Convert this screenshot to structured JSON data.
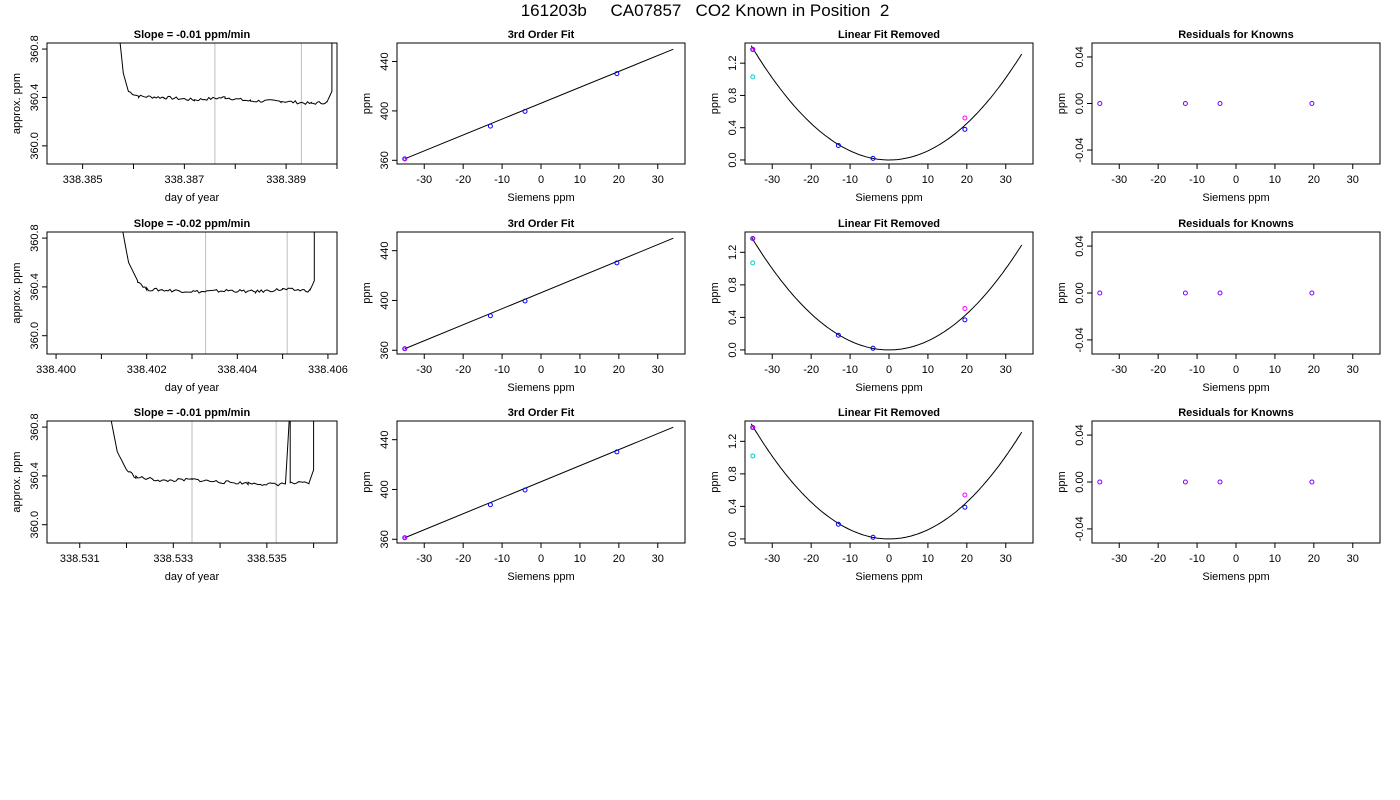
{
  "page": {
    "title": "161203b     CA07857   CO2 Known in Position  2"
  },
  "labels": {
    "time_xlabel": "day of year",
    "time_ylabel": "approx. ppm",
    "fit_title": "3rd Order Fit",
    "fit_ylabel": "ppm",
    "linrem_title": "Linear Fit Removed",
    "linrem_ylabel": "ppm",
    "resid_title": "Residuals for Knowns",
    "resid_ylabel": "ppm",
    "siemens_xlabel": "Siemens ppm"
  },
  "colors": {
    "line": "#000000",
    "blue": "#0000ff",
    "magenta": "#ff00ff",
    "cyan": "#00cccc",
    "purple": "#8000ff",
    "gray": "#bebebe"
  },
  "chart_data": [
    {
      "row": 1,
      "type": "line",
      "title": "Slope =  -0.01  ppm/min",
      "xlabel": "day of year",
      "ylabel": "approx. ppm",
      "xlim": [
        338.3843,
        338.39
      ],
      "ylim": [
        359.85,
        360.85
      ],
      "xticks": [
        338.385,
        338.387,
        338.389
      ],
      "xticklabels": [
        "338.385",
        "338.387",
        "338.389"
      ],
      "xminor": [
        338.386,
        338.388,
        338.39
      ],
      "yticks": [
        360.0,
        360.4,
        360.8
      ],
      "yticklabels": [
        "360.0",
        "360.4",
        "360.8"
      ],
      "vlines": [
        338.3876,
        338.3893
      ],
      "trace": [
        [
          338.3857,
          361.0
        ],
        [
          338.3858,
          360.6
        ],
        [
          338.3859,
          360.45
        ],
        [
          338.3861,
          360.41
        ],
        [
          338.3866,
          360.4
        ],
        [
          338.3872,
          360.38
        ],
        [
          338.3878,
          360.4
        ],
        [
          338.3883,
          360.37
        ],
        [
          338.3889,
          360.37
        ],
        [
          338.3895,
          360.35
        ],
        [
          338.3898,
          360.36
        ],
        [
          338.3899,
          360.45
        ],
        [
          338.3899,
          361.0
        ]
      ]
    },
    {
      "row": 2,
      "type": "line",
      "title": "Slope =  -0.02  ppm/min",
      "xlabel": "day of year",
      "ylabel": "approx. ppm",
      "xlim": [
        338.3998,
        338.4062
      ],
      "ylim": [
        359.85,
        360.85
      ],
      "xticks": [
        338.4,
        338.402,
        338.404,
        338.406
      ],
      "xticklabels": [
        "338.400",
        "338.402",
        "338.404",
        "338.406"
      ],
      "xminor": [
        338.401,
        338.403,
        338.405
      ],
      "yticks": [
        360.0,
        360.4,
        360.8
      ],
      "yticklabels": [
        "360.0",
        "360.4",
        "360.8"
      ],
      "vlines": [
        338.4033,
        338.4051
      ],
      "trace": [
        [
          338.4014,
          361.0
        ],
        [
          338.4016,
          360.6
        ],
        [
          338.4018,
          360.45
        ],
        [
          338.402,
          360.38
        ],
        [
          338.4026,
          360.37
        ],
        [
          338.4032,
          360.36
        ],
        [
          338.4038,
          360.37
        ],
        [
          338.4044,
          360.36
        ],
        [
          338.405,
          360.38
        ],
        [
          338.4056,
          360.37
        ],
        [
          338.4057,
          360.45
        ],
        [
          338.4057,
          361.0
        ]
      ]
    },
    {
      "row": 3,
      "type": "line",
      "title": "Slope =  -0.01  ppm/min",
      "xlabel": "day of year",
      "ylabel": "approx. ppm",
      "xlim": [
        338.5303,
        338.5365
      ],
      "ylim": [
        359.85,
        360.85
      ],
      "xticks": [
        338.531,
        338.533,
        338.535
      ],
      "xticklabels": [
        "338.531",
        "338.533",
        "338.535"
      ],
      "xminor": [
        338.532,
        338.534,
        338.536
      ],
      "yticks": [
        360.0,
        360.4,
        360.8
      ],
      "yticklabels": [
        "360.0",
        "360.4",
        "360.8"
      ],
      "vlines": [
        338.5334,
        338.5352
      ],
      "trace": [
        [
          338.5316,
          361.0
        ],
        [
          338.5318,
          360.6
        ],
        [
          338.532,
          360.45
        ],
        [
          338.5322,
          360.39
        ],
        [
          338.5328,
          360.36
        ],
        [
          338.5334,
          360.37
        ],
        [
          338.534,
          360.35
        ],
        [
          338.5346,
          360.34
        ],
        [
          338.5352,
          360.33
        ],
        [
          338.5354,
          360.34
        ],
        [
          338.5355,
          361.0
        ],
        [
          338.5355,
          360.34
        ],
        [
          338.5359,
          360.34
        ],
        [
          338.536,
          360.45
        ],
        [
          338.536,
          361.0
        ]
      ]
    },
    {
      "row": 1,
      "type": "scatter",
      "title": "3rd Order Fit",
      "xlabel": "Siemens ppm",
      "ylabel": "ppm",
      "xlim": [
        -37,
        37
      ],
      "ylim": [
        357,
        455
      ],
      "xticks": [
        -30,
        -20,
        -10,
        0,
        10,
        20,
        30
      ],
      "yticks": [
        360,
        400,
        440
      ],
      "x": [
        -35.0,
        -13.0,
        -4.1,
        19.5
      ],
      "y": [
        361.2,
        387.7,
        399.6,
        430.2
      ],
      "line": [
        [
          -35,
          361.2
        ],
        [
          34,
          450.0
        ]
      ]
    },
    {
      "row": 2,
      "type": "scatter",
      "title": "3rd Order Fit",
      "xlabel": "Siemens ppm",
      "ylabel": "ppm",
      "xlim": [
        -37,
        37
      ],
      "ylim": [
        357,
        455
      ],
      "xticks": [
        -30,
        -20,
        -10,
        0,
        10,
        20,
        30
      ],
      "yticks": [
        360,
        400,
        440
      ],
      "x": [
        -35.0,
        -13.0,
        -4.1,
        19.5
      ],
      "y": [
        361.2,
        387.7,
        399.6,
        430.2
      ],
      "line": [
        [
          -35,
          361.2
        ],
        [
          34,
          450.0
        ]
      ]
    },
    {
      "row": 3,
      "type": "scatter",
      "title": "3rd Order Fit",
      "xlabel": "Siemens ppm",
      "ylabel": "ppm",
      "xlim": [
        -37,
        37
      ],
      "ylim": [
        357,
        455
      ],
      "xticks": [
        -30,
        -20,
        -10,
        0,
        10,
        20,
        30
      ],
      "yticks": [
        360,
        400,
        440
      ],
      "x": [
        -35.0,
        -13.0,
        -4.1,
        19.5
      ],
      "y": [
        361.2,
        387.7,
        399.6,
        430.2
      ],
      "line": [
        [
          -35,
          361.2
        ],
        [
          34,
          450.0
        ]
      ]
    },
    {
      "row": 1,
      "type": "scatter",
      "title": "Linear Fit Removed",
      "xlabel": "Siemens ppm",
      "ylabel": "ppm",
      "xlim": [
        -37,
        37
      ],
      "ylim": [
        -0.05,
        1.45
      ],
      "xticks": [
        -30,
        -20,
        -10,
        0,
        10,
        20,
        30
      ],
      "yticks": [
        0.0,
        0.4,
        0.8,
        1.2
      ],
      "x": [
        -35.0,
        -13.0,
        -4.1,
        19.5
      ],
      "y": [
        1.37,
        0.18,
        0.02,
        0.38
      ],
      "extra_points": [
        {
          "x": -35.0,
          "y": 1.03
        },
        {
          "x": 19.5,
          "y": 0.52
        }
      ],
      "curve_coef": [
        0.00113,
        0.0,
        0.0
      ]
    },
    {
      "row": 2,
      "type": "scatter",
      "title": "Linear Fit Removed",
      "xlabel": "Siemens ppm",
      "ylabel": "ppm",
      "xlim": [
        -37,
        37
      ],
      "ylim": [
        -0.05,
        1.45
      ],
      "xticks": [
        -30,
        -20,
        -10,
        0,
        10,
        20,
        30
      ],
      "yticks": [
        0.0,
        0.4,
        0.8,
        1.2
      ],
      "x": [
        -35.0,
        -13.0,
        -4.1,
        19.5
      ],
      "y": [
        1.37,
        0.18,
        0.02,
        0.37
      ],
      "extra_points": [
        {
          "x": -35.0,
          "y": 1.07
        },
        {
          "x": 19.5,
          "y": 0.51
        }
      ],
      "curve_coef": [
        0.00111,
        0.0,
        0.0
      ]
    },
    {
      "row": 3,
      "type": "scatter",
      "title": "Linear Fit Removed",
      "xlabel": "Siemens ppm",
      "ylabel": "ppm",
      "xlim": [
        -37,
        37
      ],
      "ylim": [
        -0.05,
        1.45
      ],
      "xticks": [
        -30,
        -20,
        -10,
        0,
        10,
        20,
        30
      ],
      "yticks": [
        0.0,
        0.4,
        0.8,
        1.2
      ],
      "x": [
        -35.0,
        -13.0,
        -4.1,
        19.5
      ],
      "y": [
        1.37,
        0.18,
        0.02,
        0.39
      ],
      "extra_points": [
        {
          "x": -35.0,
          "y": 1.02
        },
        {
          "x": 19.5,
          "y": 0.54
        }
      ],
      "curve_coef": [
        0.00113,
        0.0,
        0.0
      ]
    },
    {
      "row": 1,
      "type": "scatter",
      "title": "Residuals for Knowns",
      "xlabel": "Siemens ppm",
      "ylabel": "ppm",
      "xlim": [
        -37,
        37
      ],
      "ylim": [
        -0.052,
        0.052
      ],
      "xticks": [
        -30,
        -20,
        -10,
        0,
        10,
        20,
        30
      ],
      "yticks": [
        -0.04,
        0.0,
        0.04
      ],
      "yticklabels": [
        "-0.04",
        "0.00",
        "0.04"
      ],
      "x": [
        -35.0,
        -13.0,
        -4.1,
        19.5
      ],
      "y": [
        0.0,
        0.0,
        0.0,
        0.0
      ]
    },
    {
      "row": 2,
      "type": "scatter",
      "title": "Residuals for Knowns",
      "xlabel": "Siemens ppm",
      "ylabel": "ppm",
      "xlim": [
        -37,
        37
      ],
      "ylim": [
        -0.052,
        0.052
      ],
      "xticks": [
        -30,
        -20,
        -10,
        0,
        10,
        20,
        30
      ],
      "yticks": [
        -0.04,
        0.0,
        0.04
      ],
      "yticklabels": [
        "-0.04",
        "0.00",
        "0.04"
      ],
      "x": [
        -35.0,
        -13.0,
        -4.1,
        19.5
      ],
      "y": [
        0.0,
        0.0,
        0.0,
        0.0
      ]
    },
    {
      "row": 3,
      "type": "scatter",
      "title": "Residuals for Knowns",
      "xlabel": "Siemens ppm",
      "ylabel": "ppm",
      "xlim": [
        -37,
        37
      ],
      "ylim": [
        -0.052,
        0.052
      ],
      "xticks": [
        -30,
        -20,
        -10,
        0,
        10,
        20,
        30
      ],
      "yticks": [
        -0.04,
        0.0,
        0.04
      ],
      "yticklabels": [
        "-0.04",
        "0.00",
        "0.04"
      ],
      "x": [
        -35.0,
        -13.0,
        -4.1,
        19.5
      ],
      "y": [
        0.0,
        0.0,
        0.0,
        0.0
      ]
    }
  ]
}
